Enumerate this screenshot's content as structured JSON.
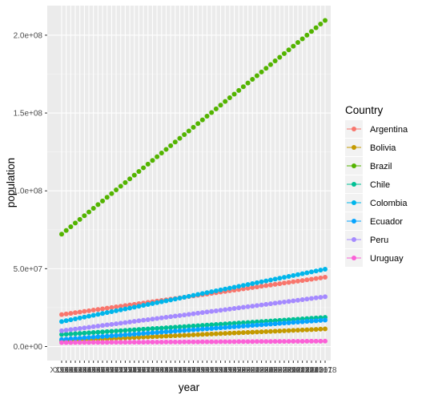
{
  "chart_data": {
    "type": "scatter",
    "xlabel": "year",
    "ylabel": "population",
    "x": [
      "X1960",
      "X1961",
      "X1962",
      "X1963",
      "X1964",
      "X1965",
      "X1966",
      "X1967",
      "X1968",
      "X1969",
      "X1970",
      "X1971",
      "X1972",
      "X1973",
      "X1974",
      "X1975",
      "X1976",
      "X1977",
      "X1978",
      "X1979",
      "X1980",
      "X1981",
      "X1982",
      "X1983",
      "X1984",
      "X1985",
      "X1986",
      "X1987",
      "X1988",
      "X1989",
      "X1990",
      "X1991",
      "X1992",
      "X1993",
      "X1994",
      "X1995",
      "X1996",
      "X1997",
      "X1998",
      "X1999",
      "X2000",
      "X2001",
      "X2002",
      "X2003",
      "X2004",
      "X2005",
      "X2006",
      "X2007",
      "X2008",
      "X2009",
      "X2010",
      "X2011",
      "X2012",
      "X2013",
      "X2014",
      "X2015",
      "X2016",
      "X2017",
      "X2018"
    ],
    "y_ticks": [
      {
        "value": 0,
        "label": "0.0e+00"
      },
      {
        "value": 50000000,
        "label": "5.0e+07"
      },
      {
        "value": 100000000,
        "label": "1.0e+08"
      },
      {
        "value": 150000000,
        "label": "1.5e+08"
      },
      {
        "value": 200000000,
        "label": "2.0e+08"
      }
    ],
    "ylim": [
      -9000000,
      219000000
    ],
    "grid": true,
    "legend": {
      "title": "Country",
      "placement": "right"
    },
    "series": [
      {
        "name": "Argentina",
        "color": "#F8766D",
        "start": 20500000,
        "end": 44500000
      },
      {
        "name": "Bolivia",
        "color": "#C49A00",
        "start": 3700000,
        "end": 11300000
      },
      {
        "name": "Brazil",
        "color": "#53B400",
        "start": 72200000,
        "end": 209500000
      },
      {
        "name": "Chile",
        "color": "#00C094",
        "start": 7700000,
        "end": 18700000
      },
      {
        "name": "Colombia",
        "color": "#00B6EB",
        "start": 16000000,
        "end": 49700000
      },
      {
        "name": "Ecuador",
        "color": "#06A4FF",
        "start": 4500000,
        "end": 17000000
      },
      {
        "name": "Peru",
        "color": "#A58AFF",
        "start": 10100000,
        "end": 32000000
      },
      {
        "name": "Uruguay",
        "color": "#FB61D7",
        "start": 2500000,
        "end": 3450000
      }
    ]
  }
}
